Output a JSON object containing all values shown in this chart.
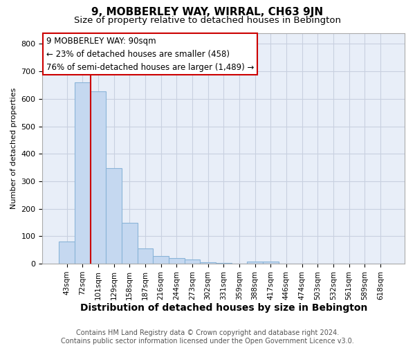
{
  "title": "9, MOBBERLEY WAY, WIRRAL, CH63 9JN",
  "subtitle": "Size of property relative to detached houses in Bebington",
  "xlabel": "Distribution of detached houses by size in Bebington",
  "ylabel": "Number of detached properties",
  "categories": [
    "43sqm",
    "72sqm",
    "101sqm",
    "129sqm",
    "158sqm",
    "187sqm",
    "216sqm",
    "244sqm",
    "273sqm",
    "302sqm",
    "331sqm",
    "359sqm",
    "388sqm",
    "417sqm",
    "446sqm",
    "474sqm",
    "503sqm",
    "532sqm",
    "561sqm",
    "589sqm",
    "618sqm"
  ],
  "values": [
    82,
    660,
    628,
    348,
    148,
    55,
    27,
    20,
    15,
    5,
    2,
    1,
    8,
    7,
    0,
    0,
    0,
    0,
    0,
    0,
    0
  ],
  "bar_color": "#c5d8f0",
  "bar_edge_color": "#8ab4d8",
  "vline_color": "#cc0000",
  "vline_position": 1.5,
  "annotation_text": "9 MOBBERLEY WAY: 90sqm\n← 23% of detached houses are smaller (458)\n76% of semi-detached houses are larger (1,489) →",
  "annotation_box_facecolor": "#ffffff",
  "annotation_box_edgecolor": "#cc0000",
  "ylim": [
    0,
    840
  ],
  "yticks": [
    0,
    100,
    200,
    300,
    400,
    500,
    600,
    700,
    800
  ],
  "plot_bg_color": "#e8eef8",
  "grid_color": "#c8d0e0",
  "footer_text": "Contains HM Land Registry data © Crown copyright and database right 2024.\nContains public sector information licensed under the Open Government Licence v3.0.",
  "title_fontsize": 11,
  "subtitle_fontsize": 9.5,
  "xlabel_fontsize": 10,
  "ylabel_fontsize": 8,
  "tick_fontsize": 7.5,
  "annotation_fontsize": 8.5,
  "footer_fontsize": 7
}
